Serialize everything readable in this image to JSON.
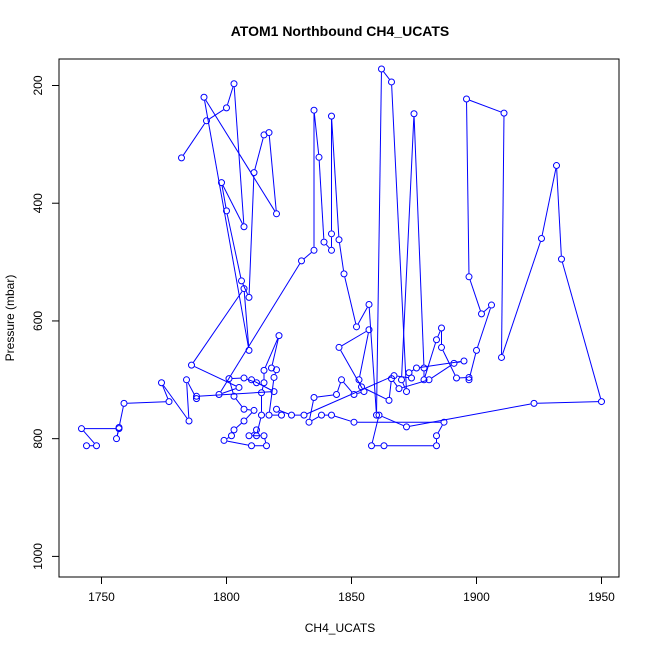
{
  "chart_data": {
    "type": "scatter",
    "mode": "lines+points",
    "title": "ATOM1 Northbound CH4_UCATS",
    "xlabel": "CH4_UCATS",
    "ylabel": "Pressure (mbar)",
    "xlim": [
      1733,
      1957
    ],
    "ylim": [
      1035,
      155
    ],
    "y_reversed": true,
    "x_ticks": [
      1750,
      1800,
      1850,
      1900,
      1950
    ],
    "y_ticks": [
      200,
      400,
      600,
      800,
      1000
    ],
    "grid": false,
    "color": "#0000ff",
    "series": [
      {
        "points": [
          [
            1782,
            323
          ],
          [
            1792,
            260
          ],
          [
            1800,
            238
          ],
          [
            1803,
            197
          ],
          [
            1807,
            440
          ],
          [
            1798,
            365
          ],
          [
            1800,
            413
          ],
          [
            1806,
            532
          ],
          [
            1809,
            560
          ],
          [
            1811,
            348
          ],
          [
            1815,
            284
          ],
          [
            1817,
            280
          ],
          [
            1820,
            418
          ],
          [
            1791,
            220
          ],
          [
            1809,
            650
          ],
          [
            1807,
            545
          ],
          [
            1786,
            675
          ],
          [
            1805,
            713
          ],
          [
            1797,
            725
          ],
          [
            1830,
            498
          ],
          [
            1835,
            480
          ],
          [
            1835,
            242
          ],
          [
            1837,
            322
          ],
          [
            1839,
            466
          ],
          [
            1842,
            480
          ],
          [
            1842,
            452
          ],
          [
            1842,
            252
          ],
          [
            1845,
            462
          ],
          [
            1847,
            520
          ],
          [
            1852,
            610
          ],
          [
            1857,
            572
          ],
          [
            1860,
            760
          ],
          [
            1862,
            172
          ],
          [
            1866,
            194
          ],
          [
            1872,
            720
          ],
          [
            1870,
            700
          ],
          [
            1875,
            248
          ],
          [
            1879,
            680
          ],
          [
            1879,
            700
          ],
          [
            1884,
            632
          ],
          [
            1886,
            612
          ],
          [
            1886,
            645
          ],
          [
            1892,
            697
          ],
          [
            1897,
            696
          ],
          [
            1897,
            700
          ],
          [
            1900,
            650
          ],
          [
            1906,
            573
          ],
          [
            1902,
            588
          ],
          [
            1897,
            525
          ],
          [
            1896,
            223
          ],
          [
            1911,
            247
          ],
          [
            1910,
            662
          ],
          [
            1926,
            460
          ],
          [
            1932,
            336
          ],
          [
            1934,
            495
          ],
          [
            1950,
            737
          ],
          [
            1923,
            740
          ],
          [
            1872,
            780
          ],
          [
            1861,
            760
          ],
          [
            1858,
            812
          ],
          [
            1863,
            812
          ],
          [
            1884,
            812
          ],
          [
            1884,
            795
          ],
          [
            1887,
            772
          ],
          [
            1851,
            772
          ],
          [
            1842,
            760
          ],
          [
            1838,
            760
          ],
          [
            1833,
            772
          ],
          [
            1835,
            730
          ],
          [
            1844,
            725
          ],
          [
            1846,
            700
          ],
          [
            1851,
            725
          ],
          [
            1855,
            720
          ],
          [
            1845,
            645
          ],
          [
            1857,
            615
          ],
          [
            1853,
            700
          ],
          [
            1854,
            712
          ],
          [
            1865,
            735
          ],
          [
            1866,
            698
          ],
          [
            1869,
            715
          ],
          [
            1881,
            700
          ],
          [
            1891,
            672
          ],
          [
            1895,
            668
          ],
          [
            1876,
            680
          ],
          [
            1873,
            688
          ],
          [
            1874,
            697
          ],
          [
            1867,
            693
          ],
          [
            1831,
            760
          ],
          [
            1826,
            760
          ],
          [
            1820,
            750
          ],
          [
            1822,
            760
          ],
          [
            1817,
            760
          ],
          [
            1819,
            696
          ],
          [
            1820,
            683
          ],
          [
            1818,
            680
          ],
          [
            1821,
            625
          ],
          [
            1815,
            684
          ],
          [
            1815,
            705
          ],
          [
            1814,
            722
          ],
          [
            1814,
            760
          ],
          [
            1812,
            795
          ],
          [
            1812,
            785
          ],
          [
            1809,
            795
          ],
          [
            1815,
            795
          ],
          [
            1816,
            812
          ],
          [
            1810,
            812
          ],
          [
            1799,
            803
          ],
          [
            1802,
            795
          ],
          [
            1803,
            785
          ],
          [
            1807,
            770
          ],
          [
            1811,
            752
          ],
          [
            1807,
            750
          ],
          [
            1803,
            728
          ],
          [
            1801,
            698
          ],
          [
            1807,
            697
          ],
          [
            1812,
            705
          ],
          [
            1810,
            700
          ],
          [
            1819,
            720
          ],
          [
            1788,
            728
          ],
          [
            1788,
            732
          ],
          [
            1784,
            700
          ],
          [
            1785,
            770
          ],
          [
            1774,
            705
          ],
          [
            1777,
            737
          ],
          [
            1759,
            740
          ],
          [
            1757,
            781
          ],
          [
            1756,
            800
          ],
          [
            1757,
            783
          ],
          [
            1742,
            783
          ],
          [
            1748,
            812
          ],
          [
            1744,
            812
          ]
        ]
      }
    ]
  }
}
